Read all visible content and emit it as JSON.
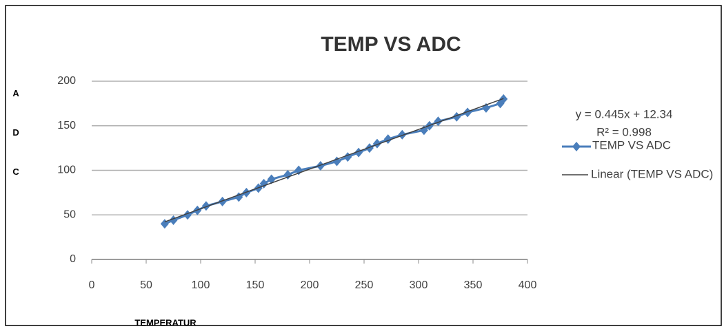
{
  "chart_data": {
    "type": "scatter",
    "title": "TEMP VS ADC",
    "xlabel": "TEMPERATUR",
    "ylabel": "ADC",
    "x": [
      67,
      75,
      88,
      97,
      105,
      120,
      135,
      142,
      153,
      158,
      165,
      180,
      190,
      210,
      225,
      235,
      245,
      255,
      262,
      272,
      285,
      305,
      310,
      318,
      335,
      345,
      362,
      375,
      378
    ],
    "series": [
      {
        "name": "TEMP VS ADC",
        "color": "#4a7ebb",
        "values": [
          40,
          44,
          50,
          55,
          60,
          65,
          70,
          75,
          80,
          85,
          90,
          95,
          100,
          105,
          110,
          115,
          120,
          125,
          130,
          135,
          140,
          145,
          150,
          155,
          160,
          165,
          170,
          175,
          180
        ]
      }
    ],
    "trendline": {
      "name": "Linear (TEMP VS ADC)",
      "equation": "y = 0.445x + 12.34",
      "r2": "R² = 0.998",
      "slope": 0.445,
      "intercept": 12.34,
      "color": "#404040"
    },
    "xlim": [
      0,
      400
    ],
    "xticks": [
      0,
      50,
      100,
      150,
      200,
      250,
      300,
      350,
      400
    ],
    "ylim": [
      0,
      200
    ],
    "yticks": [
      0,
      50,
      100,
      150,
      200
    ],
    "grid": true
  }
}
